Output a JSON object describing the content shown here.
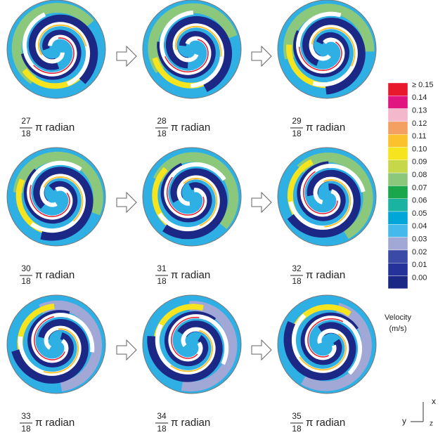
{
  "panels": [
    {
      "numerator": "27",
      "denominator": "18",
      "unit": "π radian"
    },
    {
      "numerator": "28",
      "denominator": "18",
      "unit": "π radian"
    },
    {
      "numerator": "29",
      "denominator": "18",
      "unit": "π radian"
    },
    {
      "numerator": "30",
      "denominator": "18",
      "unit": "π radian"
    },
    {
      "numerator": "31",
      "denominator": "18",
      "unit": "π radian"
    },
    {
      "numerator": "32",
      "denominator": "18",
      "unit": "π radian"
    },
    {
      "numerator": "33",
      "denominator": "18",
      "unit": "π radian"
    },
    {
      "numerator": "34",
      "denominator": "18",
      "unit": "π radian"
    },
    {
      "numerator": "35",
      "denominator": "18",
      "unit": "π radian"
    }
  ],
  "colorbar": {
    "title": "Velocity",
    "unit": "(m/s)",
    "labels": [
      "≥ 0.15",
      "0.14",
      "0.13",
      "0.12",
      "0.11",
      "0.10",
      "0.09",
      "0.08",
      "0.07",
      "0.06",
      "0.05",
      "0.04",
      "0.03",
      "0.02",
      "0.01",
      "0.00"
    ],
    "colors": [
      "#e8192c",
      "#e0157f",
      "#f4b8cc",
      "#f4a062",
      "#fbc22e",
      "#f6e41e",
      "#c6d84a",
      "#8cc87c",
      "#1aa64a",
      "#1ab2a0",
      "#00a6d8",
      "#46b9ec",
      "#a2a8d6",
      "#3a4aa6",
      "#24329a",
      "#1c2886"
    ]
  },
  "axes": {
    "x": "x",
    "y": "y",
    "z": "z"
  }
}
